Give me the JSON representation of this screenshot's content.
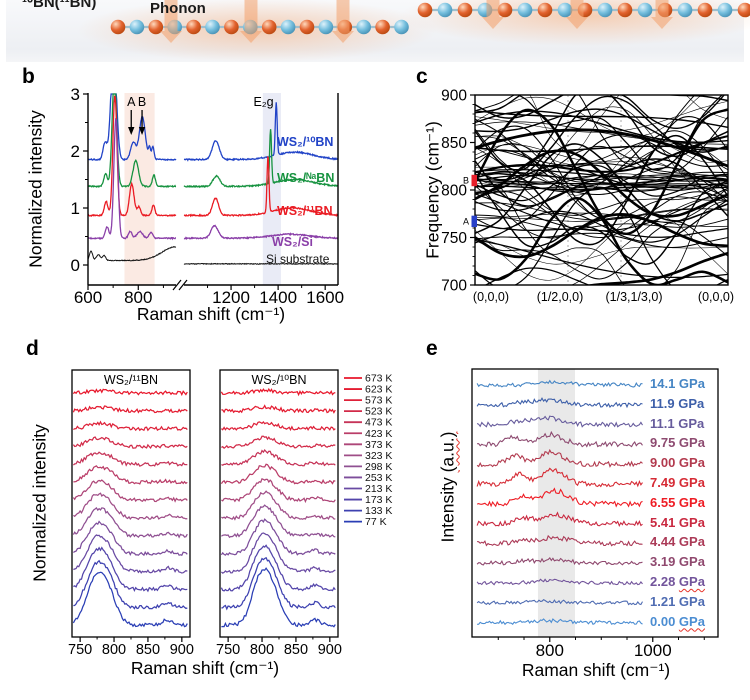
{
  "panel_a": {
    "label": "¹⁰BN(¹¹BN)",
    "phonon_label": "Phonon",
    "boron_color": "#e2622e",
    "nitrogen_color": "#74bedd",
    "arrow_color": "#f2a06c"
  },
  "chart_data": [
    {
      "id": "b",
      "panel_label": "b",
      "type": "line",
      "xlabel": "Raman shift (cm⁻¹)",
      "ylabel": "Normalized intensity",
      "xticks": [
        600,
        800,
        1200,
        1400,
        1600
      ],
      "yticks": [
        0,
        1,
        2,
        3
      ],
      "xlim": [
        600,
        1655
      ],
      "ylim": [
        0,
        3.02
      ],
      "axis_break": [
        950,
        1000
      ],
      "shaded_bands": [
        {
          "range": [
            745,
            865
          ],
          "color": "#fbeae3"
        },
        {
          "range": [
            1335,
            1412
          ],
          "color": "#e9ebf6"
        }
      ],
      "annotations": [
        {
          "text": "A",
          "x": 772,
          "arrow": true
        },
        {
          "text": "B",
          "x": 815,
          "arrow": true
        },
        {
          "text": "E₂g",
          "x": 1372,
          "arrow": false
        }
      ],
      "series": [
        {
          "name": "WS₂/¹⁰BN",
          "color": "#2143c7",
          "baseline": 1.85,
          "noise": 0.022,
          "peaks": [
            [
              668,
              8,
              0.3
            ],
            [
              702,
              11,
              1.9
            ],
            [
              780,
              10,
              0.3
            ],
            [
              816,
              12,
              0.75
            ],
            [
              845,
              4,
              0.2
            ],
            [
              858,
              5,
              0.22
            ],
            [
              1135,
              15,
              0.33
            ],
            [
              1392,
              4,
              0.92
            ],
            [
              1470,
              80,
              0.13
            ]
          ]
        },
        {
          "name": "WS₂/ᴺᵃBN",
          "color": "#179340",
          "baseline": 1.38,
          "noise": 0.022,
          "peaks": [
            [
              670,
              7,
              0.22
            ],
            [
              705,
              9,
              1.9
            ],
            [
              790,
              11,
              0.45
            ],
            [
              862,
              6,
              0.2
            ],
            [
              1138,
              15,
              0.18
            ],
            [
              1368,
              4,
              0.95
            ],
            [
              1470,
              80,
              0.12
            ]
          ]
        },
        {
          "name": "WS₂/¹¹BN",
          "color": "#ea1c24",
          "baseline": 0.87,
          "noise": 0.022,
          "peaks": [
            [
              672,
              7,
              0.25
            ],
            [
              707,
              8,
              2.1
            ],
            [
              774,
              9,
              0.55
            ],
            [
              802,
              7,
              0.15
            ],
            [
              860,
              6,
              0.18
            ],
            [
              1134,
              13,
              0.3
            ],
            [
              1357,
              4,
              1.0
            ],
            [
              1460,
              80,
              0.13
            ]
          ]
        },
        {
          "name": "WS₂/Si",
          "color": "#8a3fa8",
          "baseline": 0.47,
          "noise": 0.02,
          "peaks": [
            [
              676,
              7,
              0.2
            ],
            [
              711,
              8,
              2.1
            ],
            [
              768,
              7,
              0.12
            ],
            [
              806,
              11,
              0.12
            ],
            [
              850,
              7,
              0.1
            ],
            [
              1130,
              15,
              0.22
            ],
            [
              1450,
              80,
              0.07
            ]
          ]
        },
        {
          "name": "Si substrate",
          "color": "#111111",
          "baseline": 0.08,
          "baseline_right": 0.02,
          "noise": 0.014,
          "peaks": [
            [
              612,
              6,
              0.17
            ],
            [
              641,
              8,
              0.1
            ],
            [
              664,
              6,
              0.09
            ],
            [
              950,
              55,
              0.24
            ]
          ]
        }
      ]
    },
    {
      "id": "c",
      "panel_label": "c",
      "type": "line",
      "ylabel": "Frequency (cm⁻¹)",
      "yticks": [
        700,
        750,
        800,
        850,
        900
      ],
      "ylim": [
        700,
        900
      ],
      "k_path_labels": [
        "(0,0,0)",
        "(1/2,0,0)",
        "(1/3,1/3,0)",
        "(0,0,0)"
      ],
      "band_count": 72,
      "markers": [
        {
          "text": "B",
          "freq_range": [
            804,
            816
          ],
          "color": "#e8202c"
        },
        {
          "text": "A",
          "freq_range": [
            761,
            773
          ],
          "color": "#2840c8"
        }
      ]
    },
    {
      "id": "d",
      "panel_label": "d",
      "type": "line",
      "xlabel": "Raman shift (cm⁻¹)",
      "ylabel": "Normalized intensity",
      "xticks": [
        750,
        800,
        850,
        900
      ],
      "xlim": [
        738,
        912
      ],
      "panels": [
        {
          "title": "WS₂/¹¹BN",
          "components": [
            [
              770,
              13,
              0.85
            ],
            [
              790,
              13,
              0.75
            ],
            [
              878,
              7,
              0.12
            ]
          ]
        },
        {
          "title": "WS₂/¹⁰BN",
          "components": [
            [
              795,
              12,
              0.8
            ],
            [
              813,
              13,
              0.85
            ],
            [
              878,
              7,
              0.12
            ]
          ]
        }
      ],
      "temperatures": [
        {
          "label": "673 K",
          "color": "#e8172b",
          "amplitude": 2
        },
        {
          "label": "623 K",
          "color": "#e41c31",
          "amplitude": 3
        },
        {
          "label": "573 K",
          "color": "#de2139",
          "amplitude": 4.5
        },
        {
          "label": "523 K",
          "color": "#d22a48",
          "amplitude": 7
        },
        {
          "label": "473 K",
          "color": "#c63458",
          "amplitude": 10
        },
        {
          "label": "423 K",
          "color": "#ba3d68",
          "amplitude": 13
        },
        {
          "label": "373 K",
          "color": "#ad4678",
          "amplitude": 16
        },
        {
          "label": "323 K",
          "color": "#9f4d87",
          "amplitude": 20
        },
        {
          "label": "298 K",
          "color": "#8f5092",
          "amplitude": 23
        },
        {
          "label": "253 K",
          "color": "#7d4e9b",
          "amplitude": 26
        },
        {
          "label": "213 K",
          "color": "#694aa3",
          "amplitude": 30
        },
        {
          "label": "173 K",
          "color": "#5345aa",
          "amplitude": 34
        },
        {
          "label": "133 K",
          "color": "#3d41b0",
          "amplitude": 38
        },
        {
          "label": "77 K",
          "color": "#2a3eb5",
          "amplitude": 44
        }
      ]
    },
    {
      "id": "e",
      "panel_label": "e",
      "type": "line",
      "xlabel": "Raman shift (cm⁻¹)",
      "ylabel_main": "Intensity ",
      "ylabel_unit": "(a.u.)",
      "xticks": [
        800,
        1000
      ],
      "xlim": [
        649,
        1127
      ],
      "shaded_band": {
        "range": [
          777,
          849
        ],
        "color": "#e9e9e9"
      },
      "pressures": [
        {
          "value": "14.1",
          "unit": "GPa",
          "squiggle": false,
          "color": "#4585c4",
          "amplitude": 3,
          "center": 800,
          "width": 30,
          "amp2": 0,
          "noise": 4
        },
        {
          "value": "11.9",
          "unit": "GPa",
          "squiggle": false,
          "color": "#3d5fa9",
          "amplitude": 5,
          "center": 795,
          "width": 26,
          "amp2": 2,
          "center2": 740,
          "noise": 4.5
        },
        {
          "value": "11.1",
          "unit": "GPa",
          "squiggle": false,
          "color": "#665b9c",
          "amplitude": 7,
          "center": 792,
          "width": 26,
          "amp2": 3,
          "center2": 738,
          "noise": 4.5
        },
        {
          "value": "9.75",
          "unit": "GPa",
          "squiggle": false,
          "color": "#8d4a70",
          "amplitude": 10,
          "center": 800,
          "width": 24,
          "amp2": 7,
          "center2": 730,
          "noise": 5
        },
        {
          "value": "9.00",
          "unit": "GPa",
          "squiggle": false,
          "color": "#b23a4e",
          "amplitude": 12,
          "center": 804,
          "width": 22,
          "amp2": 9,
          "center2": 734,
          "noise": 5
        },
        {
          "value": "7.49",
          "unit": "GPa",
          "squiggle": false,
          "color": "#d62b35",
          "amplitude": 14,
          "center": 806,
          "width": 22,
          "amp2": 10,
          "center2": 740,
          "noise": 5
        },
        {
          "value": "6.55",
          "unit": "GPa",
          "squiggle": false,
          "color": "#ee1c24",
          "amplitude": 13,
          "center": 810,
          "width": 25,
          "amp2": 7,
          "center2": 745,
          "noise": 5
        },
        {
          "value": "5.41",
          "unit": "GPa",
          "squiggle": false,
          "color": "#c92940",
          "amplitude": 9,
          "center": 810,
          "width": 27,
          "amp2": 5,
          "center2": 748,
          "noise": 4.5
        },
        {
          "value": "4.44",
          "unit": "GPa",
          "squiggle": false,
          "color": "#ab3a57",
          "amplitude": 6,
          "center": 808,
          "width": 28,
          "amp2": 3,
          "center2": 745,
          "noise": 4.5
        },
        {
          "value": "3.19",
          "unit": "GPa",
          "squiggle": false,
          "color": "#8f486e",
          "amplitude": 4,
          "center": 805,
          "width": 28,
          "amp2": 2,
          "center2": 745,
          "noise": 4
        },
        {
          "value": "2.28",
          "unit": "GPa",
          "squiggle": true,
          "color": "#72549b",
          "amplitude": 2.5,
          "center": 800,
          "width": 30,
          "amp2": 0,
          "noise": 3.5
        },
        {
          "value": "1.21",
          "unit": "GPa",
          "squiggle": false,
          "color": "#4f6cb2",
          "amplitude": 2,
          "center": 792,
          "width": 30,
          "amp2": 0,
          "noise": 3.5
        },
        {
          "value": "0.00",
          "unit": "GPa",
          "squiggle": true,
          "color": "#4b8dd2",
          "amplitude": 2,
          "center": 800,
          "width": 30,
          "amp2": 0,
          "noise": 3.5
        }
      ]
    }
  ]
}
